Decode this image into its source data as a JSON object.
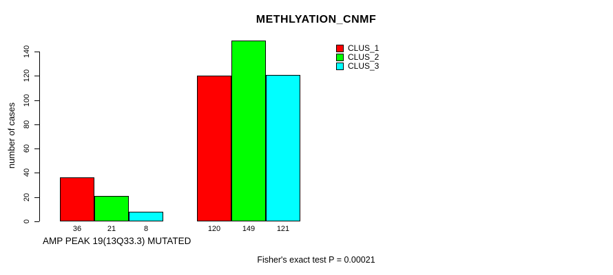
{
  "title": "METHLYATION_CNMF",
  "chart_data": {
    "type": "bar",
    "title": "METHLYATION_CNMF",
    "ylabel": "number of cases",
    "xlabel": "",
    "ylim": [
      0,
      140
    ],
    "yticks": [
      0,
      20,
      40,
      60,
      80,
      100,
      120,
      140
    ],
    "grid": false,
    "legend_position": "top-right",
    "bar_border_color": "#000000",
    "background_color": "#ffffff",
    "series": [
      {
        "name": "CLUS_1",
        "color": "#ff0000",
        "values": [
          36,
          120
        ]
      },
      {
        "name": "CLUS_2",
        "color": "#00ff00",
        "values": [
          21,
          149
        ]
      },
      {
        "name": "CLUS_3",
        "color": "#00ffff",
        "values": [
          8,
          121
        ]
      }
    ],
    "groups": [
      {
        "label": "AMP PEAK 19(13Q33.3) MUTATED",
        "values": [
          36,
          21,
          8
        ],
        "value_labels": [
          "36",
          "21",
          "8"
        ]
      },
      {
        "label": "",
        "values": [
          120,
          149,
          121
        ],
        "value_labels": [
          "120",
          "149",
          "121"
        ]
      }
    ],
    "footnote": "Fisher's exact test P = 0.00021"
  }
}
